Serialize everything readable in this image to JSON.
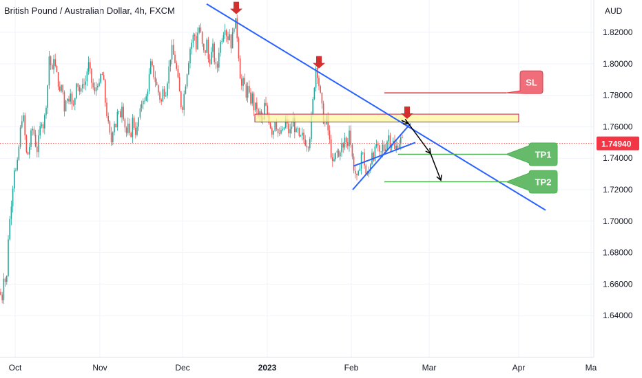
{
  "chart_data": {
    "type": "candlestick",
    "title": "British Pound / Australian Dollar, 4h, FXCM",
    "currency_label": "AUD",
    "y_ticks": [
      "1.64000",
      "1.66000",
      "1.68000",
      "1.70000",
      "1.72000",
      "1.74000",
      "1.76000",
      "1.78000",
      "1.80000",
      "1.82000"
    ],
    "y_ticks_values": [
      1.64,
      1.66,
      1.68,
      1.7,
      1.72,
      1.74,
      1.76,
      1.78,
      1.8,
      1.82
    ],
    "x_ticks": [
      "Oct",
      "Nov",
      "Dec",
      "2023",
      "Feb",
      "Mar",
      "Apr",
      "Ma"
    ],
    "ylim": [
      1.625,
      1.845
    ],
    "current_price": "1.74940",
    "current_price_value": 1.7494,
    "colors": {
      "up": "#26a69a",
      "down": "#ef5350",
      "trend": "#2962ff",
      "zone": "#fff59d",
      "sl": "#e53945",
      "tp": "#4caf50",
      "marker": "#d32f2f"
    },
    "price_path": [
      [
        0,
        1.655
      ],
      [
        3,
        1.65
      ],
      [
        6,
        1.67
      ],
      [
        9,
        1.655
      ],
      [
        12,
        1.69
      ],
      [
        15,
        1.705
      ],
      [
        18,
        1.72
      ],
      [
        21,
        1.735
      ],
      [
        24,
        1.73
      ],
      [
        27,
        1.745
      ],
      [
        30,
        1.76
      ],
      [
        33,
        1.77
      ],
      [
        36,
        1.755
      ],
      [
        39,
        1.74
      ],
      [
        42,
        1.745
      ],
      [
        45,
        1.755
      ],
      [
        48,
        1.76
      ],
      [
        51,
        1.75
      ],
      [
        54,
        1.745
      ],
      [
        57,
        1.755
      ],
      [
        60,
        1.765
      ],
      [
        63,
        1.76
      ],
      [
        66,
        1.77
      ],
      [
        69,
        1.785
      ],
      [
        72,
        1.81
      ],
      [
        75,
        1.79
      ],
      [
        78,
        1.805
      ],
      [
        81,
        1.795
      ],
      [
        84,
        1.79
      ],
      [
        87,
        1.78
      ],
      [
        90,
        1.79
      ],
      [
        93,
        1.77
      ],
      [
        96,
        1.78
      ],
      [
        99,
        1.775
      ],
      [
        102,
        1.785
      ],
      [
        105,
        1.77
      ],
      [
        108,
        1.775
      ],
      [
        111,
        1.79
      ],
      [
        114,
        1.785
      ],
      [
        117,
        1.78
      ],
      [
        120,
        1.79
      ],
      [
        123,
        1.785
      ],
      [
        126,
        1.795
      ],
      [
        129,
        1.8
      ],
      [
        132,
        1.79
      ],
      [
        135,
        1.785
      ],
      [
        138,
        1.78
      ],
      [
        141,
        1.79
      ],
      [
        144,
        1.785
      ],
      [
        147,
        1.795
      ],
      [
        150,
        1.79
      ],
      [
        153,
        1.775
      ],
      [
        156,
        1.765
      ],
      [
        159,
        1.755
      ],
      [
        162,
        1.75
      ],
      [
        165,
        1.765
      ],
      [
        168,
        1.76
      ],
      [
        171,
        1.77
      ],
      [
        174,
        1.765
      ],
      [
        177,
        1.775
      ],
      [
        180,
        1.765
      ],
      [
        183,
        1.755
      ],
      [
        186,
        1.76
      ],
      [
        189,
        1.75
      ],
      [
        192,
        1.765
      ],
      [
        195,
        1.76
      ],
      [
        198,
        1.755
      ],
      [
        201,
        1.765
      ],
      [
        204,
        1.77
      ],
      [
        207,
        1.78
      ],
      [
        210,
        1.775
      ],
      [
        213,
        1.78
      ],
      [
        216,
        1.79
      ],
      [
        219,
        1.8
      ],
      [
        222,
        1.795
      ],
      [
        225,
        1.79
      ],
      [
        228,
        1.785
      ],
      [
        231,
        1.78
      ],
      [
        234,
        1.775
      ],
      [
        237,
        1.785
      ],
      [
        240,
        1.78
      ],
      [
        243,
        1.79
      ],
      [
        246,
        1.8
      ],
      [
        249,
        1.81
      ],
      [
        252,
        1.805
      ],
      [
        255,
        1.8
      ],
      [
        258,
        1.79
      ],
      [
        261,
        1.78
      ],
      [
        264,
        1.77
      ],
      [
        267,
        1.78
      ],
      [
        270,
        1.79
      ],
      [
        273,
        1.8
      ],
      [
        276,
        1.81
      ],
      [
        279,
        1.815
      ],
      [
        282,
        1.82
      ],
      [
        285,
        1.81
      ],
      [
        288,
        1.825
      ],
      [
        291,
        1.82
      ],
      [
        294,
        1.81
      ],
      [
        297,
        1.805
      ],
      [
        300,
        1.815
      ],
      [
        303,
        1.8
      ],
      [
        306,
        1.805
      ],
      [
        309,
        1.81
      ],
      [
        312,
        1.8
      ],
      [
        315,
        1.795
      ],
      [
        318,
        1.81
      ],
      [
        321,
        1.815
      ],
      [
        324,
        1.82
      ],
      [
        327,
        1.825
      ],
      [
        330,
        1.815
      ],
      [
        333,
        1.82
      ],
      [
        336,
        1.81
      ],
      [
        339,
        1.825
      ],
      [
        342,
        1.826
      ],
      [
        345,
        1.815
      ],
      [
        348,
        1.795
      ],
      [
        351,
        1.785
      ],
      [
        354,
        1.79
      ],
      [
        357,
        1.78
      ],
      [
        360,
        1.785
      ],
      [
        363,
        1.775
      ],
      [
        366,
        1.78
      ],
      [
        369,
        1.77
      ],
      [
        372,
        1.775
      ],
      [
        375,
        1.765
      ],
      [
        378,
        1.77
      ],
      [
        381,
        1.76
      ],
      [
        384,
        1.775
      ],
      [
        387,
        1.77
      ],
      [
        390,
        1.765
      ],
      [
        393,
        1.76
      ],
      [
        396,
        1.755
      ],
      [
        399,
        1.765
      ],
      [
        402,
        1.76
      ],
      [
        405,
        1.752
      ],
      [
        408,
        1.758
      ],
      [
        411,
        1.755
      ],
      [
        414,
        1.765
      ],
      [
        417,
        1.76
      ],
      [
        420,
        1.755
      ],
      [
        423,
        1.76
      ],
      [
        426,
        1.765
      ],
      [
        429,
        1.755
      ],
      [
        432,
        1.758
      ],
      [
        435,
        1.75
      ],
      [
        438,
        1.755
      ],
      [
        441,
        1.752
      ],
      [
        444,
        1.75
      ],
      [
        447,
        1.748
      ],
      [
        450,
        1.755
      ],
      [
        453,
        1.77
      ],
      [
        456,
        1.785
      ],
      [
        459,
        1.8
      ],
      [
        462,
        1.79
      ],
      [
        465,
        1.78
      ],
      [
        468,
        1.77
      ],
      [
        471,
        1.76
      ],
      [
        474,
        1.765
      ],
      [
        477,
        1.755
      ],
      [
        480,
        1.745
      ],
      [
        483,
        1.735
      ],
      [
        486,
        1.74
      ],
      [
        489,
        1.745
      ],
      [
        492,
        1.74
      ],
      [
        495,
        1.75
      ],
      [
        498,
        1.745
      ],
      [
        501,
        1.755
      ],
      [
        504,
        1.745
      ],
      [
        507,
        1.76
      ],
      [
        510,
        1.745
      ],
      [
        513,
        1.735
      ],
      [
        516,
        1.73
      ],
      [
        519,
        1.725
      ],
      [
        522,
        1.735
      ],
      [
        525,
        1.745
      ],
      [
        528,
        1.74
      ],
      [
        531,
        1.73
      ],
      [
        534,
        1.728
      ],
      [
        537,
        1.735
      ],
      [
        540,
        1.745
      ],
      [
        543,
        1.74
      ],
      [
        546,
        1.75
      ],
      [
        549,
        1.745
      ],
      [
        552,
        1.74
      ],
      [
        555,
        1.748
      ],
      [
        558,
        1.745
      ],
      [
        561,
        1.75
      ],
      [
        564,
        1.755
      ],
      [
        567,
        1.748
      ],
      [
        570,
        1.752
      ],
      [
        573,
        1.745
      ],
      [
        576,
        1.748
      ],
      [
        579,
        1.75
      ],
      [
        582,
        1.752
      ],
      [
        585,
        1.75
      ]
    ],
    "trend_lines": [
      {
        "name": "upper-downtrend",
        "x1": 300,
        "y1": 1.838,
        "x2": 792,
        "y2": 1.707
      },
      {
        "name": "channel-lower",
        "x1": 512,
        "y1": 1.72,
        "x2": 596,
        "y2": 1.762
      },
      {
        "name": "channel-upper",
        "x1": 513,
        "y1": 1.735,
        "x2": 603,
        "y2": 1.75
      }
    ],
    "resistance_zone": {
      "x1": 370,
      "x2": 753,
      "y_top": 1.768,
      "y_bottom": 1.763
    },
    "levels": [
      {
        "name": "SL",
        "label": "SL",
        "x1": 558,
        "x2": 735,
        "price": 1.7815,
        "box_x": 755,
        "box_w": 33
      },
      {
        "name": "TP1",
        "label": "TP1",
        "x1": 578,
        "x2": 735,
        "price": 1.7425,
        "box_x": 768,
        "box_w": 41
      },
      {
        "name": "TP2",
        "label": "TP2",
        "x1": 558,
        "x2": 735,
        "price": 1.725,
        "box_x": 768,
        "box_w": 41
      }
    ],
    "arrows_down": [
      {
        "x": 343,
        "price": 1.8315
      },
      {
        "x": 463,
        "price": 1.797
      },
      {
        "x": 591,
        "price": 1.765
      }
    ],
    "projection_path": [
      [
        583,
        1.764
      ],
      [
        593,
        1.762
      ],
      [
        625,
        1.743
      ],
      [
        640,
        1.726
      ]
    ]
  }
}
